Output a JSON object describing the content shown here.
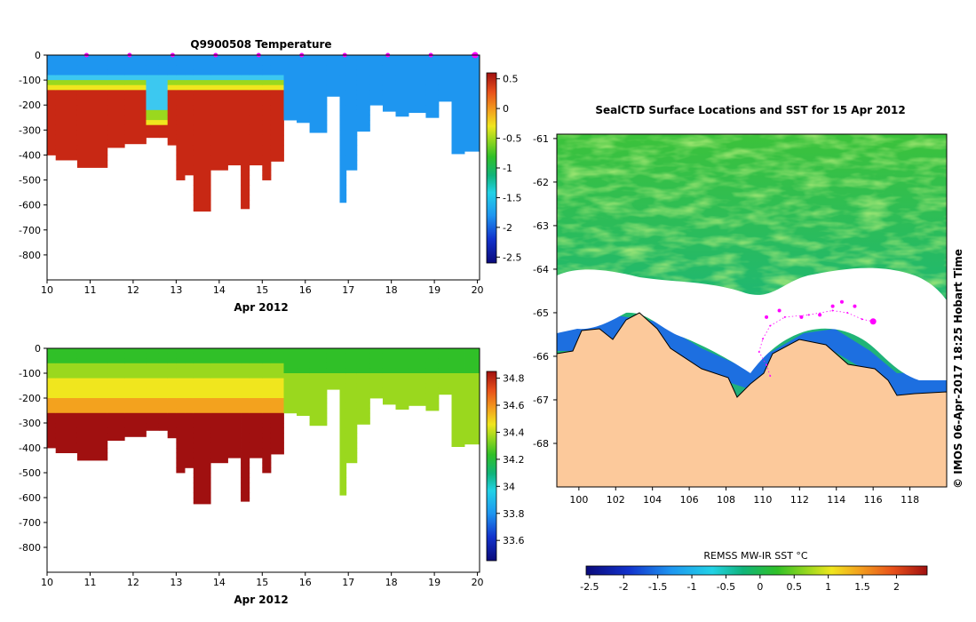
{
  "chart_data": [
    {
      "type": "heatmap",
      "title": "Q9900508  Temperature",
      "xlabel": "Apr 2012",
      "ylabel": "",
      "xlim": [
        10,
        20.05
      ],
      "ylim": [
        -900,
        0
      ],
      "xticks": [
        "10",
        "11",
        "12",
        "13",
        "14",
        "15",
        "16",
        "17",
        "18",
        "19",
        "20"
      ],
      "yticks": [
        "0",
        "-100",
        "-200",
        "-300",
        "-400",
        "-500",
        "-600",
        "-700",
        "-800"
      ],
      "colorbar": {
        "ticks": [
          "0.5",
          "0",
          "-0.5",
          "-1",
          "-1.5",
          "-2",
          "-2.5"
        ],
        "range": [
          -2.6,
          0.6
        ]
      },
      "profile_markers_x": [
        11,
        12,
        13,
        14,
        15,
        16,
        17,
        18,
        19,
        20
      ]
    },
    {
      "type": "heatmap",
      "title": "",
      "xlabel": "Apr 2012",
      "ylabel": "",
      "xlim": [
        10,
        20.05
      ],
      "ylim": [
        -900,
        0
      ],
      "xticks": [
        "10",
        "11",
        "12",
        "13",
        "14",
        "15",
        "16",
        "17",
        "18",
        "19",
        "20"
      ],
      "yticks": [
        "0",
        "-100",
        "-200",
        "-300",
        "-400",
        "-500",
        "-600",
        "-700",
        "-800"
      ],
      "colorbar": {
        "ticks": [
          "34.8",
          "34.6",
          "34.4",
          "34.2",
          "34",
          "33.8",
          "33.6"
        ],
        "range": [
          33.45,
          34.85
        ]
      }
    },
    {
      "type": "heatmap",
      "title": "SealCTD Surface Locations and SST for 15 Apr 2012",
      "xlim": [
        98.8,
        120
      ],
      "ylim": [
        -69,
        -60.9
      ],
      "xticks": [
        "100",
        "102",
        "104",
        "106",
        "108",
        "110",
        "112",
        "114",
        "116",
        "118"
      ],
      "yticks": [
        "-61",
        "-62",
        "-63",
        "-64",
        "-65",
        "-66",
        "-67",
        "-68"
      ],
      "colorbar": {
        "label": "REMSS MW-IR SST °C",
        "ticks": [
          "-2.5",
          "-2",
          "-1.5",
          "-1",
          "-0.5",
          "0",
          "0.5",
          "1",
          "1.5",
          "2"
        ],
        "range": [
          -2.55,
          2.45
        ]
      },
      "side_note": "©  IMOS 06-Apr-2017 18:25 Hobart Time"
    }
  ]
}
